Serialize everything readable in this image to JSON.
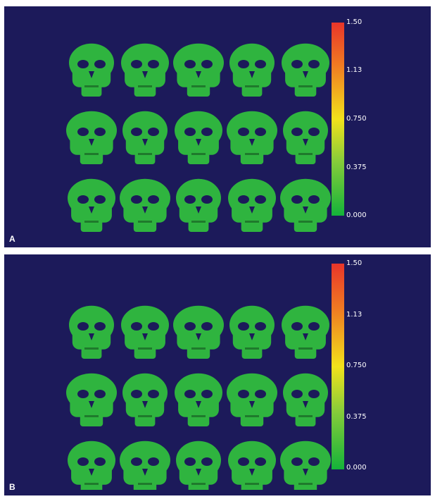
{
  "colormap": {
    "ticks": [
      "1.50",
      "1.13",
      "0.750",
      "0.375",
      "0.000"
    ],
    "colors": [
      "#e8352a",
      "#f07a22",
      "#f2e21b",
      "#86cc3a",
      "#14b33a"
    ]
  },
  "panels": [
    {
      "label": "A",
      "rows": 3,
      "cols": 5
    },
    {
      "label": "B",
      "rows": 3,
      "cols": 5
    }
  ],
  "background_color": "#1c1a5a",
  "skull_color": "#2fb43f"
}
